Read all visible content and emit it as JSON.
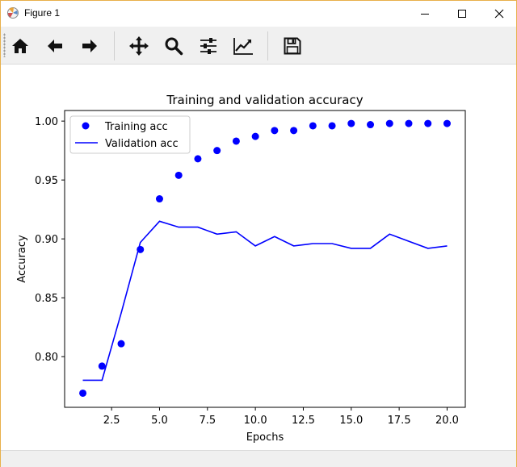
{
  "window": {
    "title": "Figure 1",
    "controls": {
      "minimize": "minimize",
      "maximize": "maximize",
      "close": "close"
    }
  },
  "toolbar": {
    "buttons": [
      {
        "name": "home-icon"
      },
      {
        "name": "back-arrow-icon"
      },
      {
        "name": "forward-arrow-icon"
      },
      {
        "name": "pan-icon"
      },
      {
        "name": "zoom-icon"
      },
      {
        "name": "configure-subplots-icon"
      },
      {
        "name": "edit-axis-icon"
      },
      {
        "name": "save-icon"
      }
    ]
  },
  "colors": {
    "series": "#0000ff",
    "axes": "#000000",
    "toolbar_bg": "#f0f0f0"
  },
  "chart_data": {
    "type": "scatter",
    "title": "Training and validation accuracy",
    "xlabel": "Epochs",
    "ylabel": "Accuracy",
    "xlim": [
      0.05,
      20.95
    ],
    "ylim": [
      0.757,
      1.009
    ],
    "xticks": [
      2.5,
      5.0,
      7.5,
      10.0,
      12.5,
      15.0,
      17.5,
      20.0
    ],
    "xtick_labels": [
      "2.5",
      "5.0",
      "7.5",
      "10.0",
      "12.5",
      "15.0",
      "17.5",
      "20.0"
    ],
    "yticks": [
      0.8,
      0.85,
      0.9,
      0.95,
      1.0
    ],
    "ytick_labels": [
      "0.80",
      "0.85",
      "0.90",
      "0.95",
      "1.00"
    ],
    "grid": false,
    "legend_position": "top-left",
    "series": [
      {
        "name": "Training acc",
        "style": "markers",
        "color": "#0000ff",
        "x": [
          1,
          2,
          3,
          4,
          5,
          6,
          7,
          8,
          9,
          10,
          11,
          12,
          13,
          14,
          15,
          16,
          17,
          18,
          19,
          20
        ],
        "y": [
          0.769,
          0.792,
          0.811,
          0.891,
          0.934,
          0.954,
          0.968,
          0.975,
          0.983,
          0.987,
          0.992,
          0.992,
          0.996,
          0.996,
          0.998,
          0.997,
          0.998,
          0.998,
          0.998,
          0.998
        ]
      },
      {
        "name": "Validation acc",
        "style": "line",
        "color": "#0000ff",
        "x": [
          1,
          2,
          3,
          4,
          5,
          6,
          7,
          8,
          9,
          10,
          11,
          12,
          13,
          14,
          15,
          16,
          17,
          18,
          19,
          20
        ],
        "y": [
          0.78,
          0.78,
          0.837,
          0.897,
          0.915,
          0.91,
          0.91,
          0.904,
          0.906,
          0.894,
          0.902,
          0.894,
          0.896,
          0.896,
          0.892,
          0.892,
          0.904,
          0.898,
          0.892,
          0.894
        ]
      }
    ]
  }
}
